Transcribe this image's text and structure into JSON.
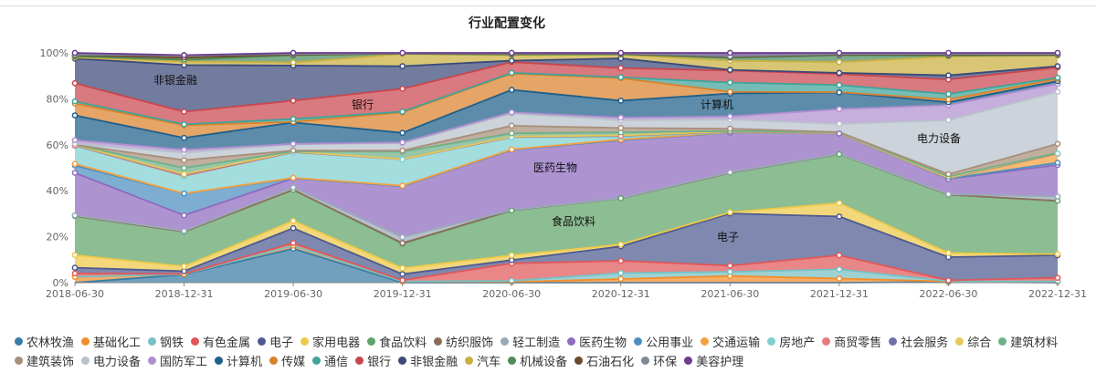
{
  "chart_data": {
    "type": "area",
    "stacked": true,
    "normalized": true,
    "title": "行业配置变化",
    "x": [
      "2018-06-30",
      "2018-12-31",
      "2019-06-30",
      "2019-12-31",
      "2020-06-30",
      "2020-12-31",
      "2021-06-30",
      "2021-12-31",
      "2022-06-30",
      "2022-12-31"
    ],
    "ylim": [
      0,
      100
    ],
    "yticks": [
      "0%",
      "20%",
      "40%",
      "60%",
      "80%",
      "100%"
    ],
    "grid": false,
    "legend_position": "bottom",
    "series": [
      {
        "name": "农林牧渔",
        "color": "#3a7ca5",
        "values": [
          0,
          3.5,
          14.8,
          0,
          0,
          0,
          0,
          0,
          0.3,
          0
        ]
      },
      {
        "name": "基础化工",
        "color": "#f28e2b",
        "values": [
          2.5,
          0.2,
          1.3,
          0.5,
          0.3,
          1.6,
          2.9,
          1.8,
          0.2,
          0.3
        ]
      },
      {
        "name": "钢铁",
        "color": "#76c1c4",
        "values": [
          0,
          0,
          0,
          0,
          0.5,
          2.6,
          1.8,
          4.0,
          0.1,
          0.2
        ]
      },
      {
        "name": "有色金属",
        "color": "#e15759",
        "values": [
          1.5,
          0.1,
          1.1,
          0.5,
          7.6,
          5.3,
          2.7,
          6.1,
          0.4,
          1.6
        ]
      },
      {
        "name": "电子",
        "color": "#4e5a8f",
        "values": [
          2.5,
          1.2,
          6.5,
          2.7,
          1.4,
          6.3,
          22.7,
          16.9,
          10.1,
          9.8
        ]
      },
      {
        "name": "家用电器",
        "color": "#edc948",
        "values": [
          5.5,
          2.1,
          3.2,
          2.6,
          2.1,
          0.8,
          0.5,
          5.8,
          1.8,
          0.5
        ]
      },
      {
        "name": "食品饮料",
        "color": "#5fa36a",
        "values": [
          17,
          15.1,
          13.5,
          10.6,
          19.5,
          20.1,
          17.2,
          21.3,
          25.4,
          23.2
        ]
      },
      {
        "name": "纺织服饰",
        "color": "#8c6d5a",
        "values": [
          0,
          0,
          0,
          0.3,
          0.1,
          0,
          0,
          0.1,
          0,
          0
        ]
      },
      {
        "name": "轻工制造",
        "color": "#9aa9b8",
        "values": [
          0.3,
          0.3,
          1.0,
          2.6,
          0.1,
          0.1,
          0.2,
          0.1,
          0.2,
          1.9
        ]
      },
      {
        "name": "医药生物",
        "color": "#8e6bbf",
        "values": [
          18.5,
          6.8,
          4.0,
          22.2,
          26.2,
          25.2,
          17.3,
          8.8,
          6.6,
          13.7
        ]
      },
      {
        "name": "公用事业",
        "color": "#4b8fc0",
        "values": [
          3.2,
          9.5,
          0,
          0,
          0,
          0,
          0,
          0.1,
          0.1,
          1.0
        ]
      },
      {
        "name": "交通运输",
        "color": "#f5a040",
        "values": [
          0.7,
          0,
          0.2,
          0.2,
          0.2,
          0.3,
          0.1,
          0,
          0.1,
          3.8
        ]
      },
      {
        "name": "房地产",
        "color": "#7fd0d0",
        "values": [
          7.8,
          7.6,
          11.1,
          11.4,
          5.3,
          1.0,
          0.1,
          0.1,
          0.1,
          0.2
        ]
      },
      {
        "name": "商贸零售",
        "color": "#e8797b",
        "values": [
          0.2,
          0.1,
          0.1,
          0.1,
          0.1,
          0.6,
          0.1,
          0.1,
          0.1,
          0.1
        ]
      },
      {
        "name": "社会服务",
        "color": "#6d72a8",
        "values": [
          0.1,
          0.5,
          0.1,
          0.1,
          0.1,
          0.1,
          0.1,
          0.1,
          0.1,
          0.1
        ]
      },
      {
        "name": "综合",
        "color": "#e6c95a",
        "values": [
          0.1,
          0.2,
          0.1,
          0,
          0.1,
          0.1,
          0.1,
          0,
          0.1,
          0.1
        ]
      },
      {
        "name": "建筑材料",
        "color": "#6fb088",
        "values": [
          0.1,
          2.7,
          0.1,
          3.2,
          1.4,
          1.3,
          0.2,
          0.1,
          0.5,
          0
        ]
      },
      {
        "name": "建筑装饰",
        "color": "#a88f7a",
        "values": [
          0,
          3.4,
          0.4,
          0.5,
          3.3,
          1.9,
          1.0,
          0.1,
          1.0,
          3.9
        ]
      },
      {
        "name": "电力设备",
        "color": "#b9c2cc",
        "values": [
          0.5,
          3.2,
          2.7,
          3.2,
          5.3,
          3.4,
          4.0,
          3.6,
          23.5,
          22.7
        ]
      },
      {
        "name": "国防军工",
        "color": "#b08fd0",
        "values": [
          1.5,
          1.3,
          0.2,
          0.3,
          0.5,
          1.1,
          1.3,
          6.4,
          6.6,
          3.4
        ]
      },
      {
        "name": "计算机",
        "color": "#1f5f8b",
        "values": [
          10.8,
          5.2,
          9.3,
          4.2,
          9.8,
          7.4,
          10.0,
          7.3,
          1.2,
          1.2
        ]
      },
      {
        "name": "传媒",
        "color": "#d9822b",
        "values": [
          5.2,
          5.5,
          0.3,
          8.9,
          7.1,
          9.8,
          0.8,
          0.1,
          1.2,
          1.0
        ]
      },
      {
        "name": "通信",
        "color": "#3fa39a",
        "values": [
          0.9,
          0.4,
          1.2,
          0.3,
          0.3,
          0.4,
          4.0,
          3.1,
          2.4,
          0.5
        ]
      },
      {
        "name": "银行",
        "color": "#c9464d",
        "values": [
          7.9,
          5.5,
          8.0,
          10.0,
          4.7,
          4.0,
          5.2,
          4.8,
          6.3,
          4.5
        ]
      },
      {
        "name": "非银金融",
        "color": "#3a4a7a",
        "values": [
          10.7,
          20.3,
          15.3,
          9.8,
          0.6,
          4.2,
          0.3,
          0.5,
          1.8,
          0.5
        ]
      },
      {
        "name": "汽车",
        "color": "#c9b040",
        "values": [
          0.5,
          1.6,
          1.3,
          5.3,
          2.4,
          1.6,
          4.0,
          4.7,
          8.2,
          4.7
        ]
      },
      {
        "name": "机械设备",
        "color": "#4f8a5b",
        "values": [
          0.5,
          0.7,
          3.2,
          0.1,
          0.3,
          0.2,
          1.3,
          3.0,
          0.4,
          0.1
        ]
      },
      {
        "name": "石油石化",
        "color": "#6b4a2f",
        "values": [
          0.5,
          1.0,
          0.2,
          0.1,
          0.2,
          0.2,
          0.3,
          0.2,
          0.4,
          0.2
        ]
      },
      {
        "name": "环保",
        "color": "#7d8a96",
        "values": [
          0.2,
          1.0,
          0.3,
          0.1,
          0.2,
          0.2,
          0.3,
          0.3,
          0.3,
          0.3
        ]
      },
      {
        "name": "美容护理",
        "color": "#6a3d8f",
        "values": [
          0.8,
          0,
          0.5,
          0.2,
          0.3,
          0.2,
          1.5,
          0.5,
          0.5,
          0.5
        ]
      }
    ],
    "area_labels": [
      "非银金融",
      "银行",
      "医药生物",
      "食品饮料",
      "计算机",
      "电子",
      "电力设备"
    ]
  }
}
